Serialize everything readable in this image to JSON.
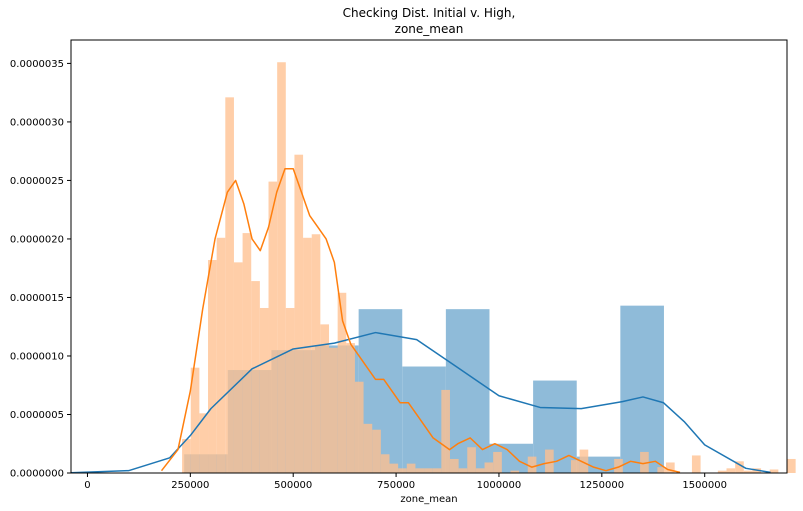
{
  "chart_data": {
    "type": "bar",
    "title_line1": "Checking Dist. Initial v. High,",
    "title_line2": "zone_mean",
    "xlabel": "zone_mean",
    "ylabel": "",
    "xlim": [
      -40000,
      1700000
    ],
    "ylim": [
      0,
      3.7e-06
    ],
    "xticks": [
      {
        "value": 0,
        "label": "0"
      },
      {
        "value": 250000,
        "label": "250000"
      },
      {
        "value": 500000,
        "label": "500000"
      },
      {
        "value": 750000,
        "label": "750000"
      },
      {
        "value": 1000000,
        "label": "1000000"
      },
      {
        "value": 1250000,
        "label": "1250000"
      },
      {
        "value": 1500000,
        "label": "1500000"
      }
    ],
    "yticks": [
      {
        "value": 0,
        "label": "0.0000000"
      },
      {
        "value": 5e-07,
        "label": "0.0000005"
      },
      {
        "value": 1e-06,
        "label": "0.0000010"
      },
      {
        "value": 1.5e-06,
        "label": "0.0000015"
      },
      {
        "value": 2e-06,
        "label": "0.0000020"
      },
      {
        "value": 2.5e-06,
        "label": "0.0000025"
      },
      {
        "value": 3e-06,
        "label": "0.0000030"
      },
      {
        "value": 3.5e-06,
        "label": "0.0000035"
      }
    ],
    "grid": false,
    "series": [
      {
        "color": "#1f77b4",
        "hist_color": "#8fbbd9",
        "bin_start": 235000,
        "bin_width": 106000,
        "hist_values": [
          1.6e-07,
          8.8e-07,
          1.05e-06,
          1.09e-06,
          1.4e-06,
          9.1e-07,
          1.4e-06,
          2.5e-07,
          7.9e-07,
          1.4e-07,
          1.43e-06
        ],
        "kde": {
          "x": [
            -40000,
            100000,
            200000,
            250000,
            300000,
            400000,
            500000,
            600000,
            700000,
            800000,
            900000,
            1000000,
            1100000,
            1200000,
            1300000,
            1350000,
            1400000,
            1450000,
            1500000,
            1600000,
            1660000
          ],
          "y": [
            2e-09,
            2e-08,
            1.3e-07,
            3.2e-07,
            5.5e-07,
            8.9e-07,
            1.06e-06,
            1.11e-06,
            1.2e-06,
            1.14e-06,
            9e-07,
            6.6e-07,
            5.6e-07,
            5.5e-07,
            6.1e-07,
            6.5e-07,
            6e-07,
            4.4e-07,
            2.4e-07,
            4e-08,
            5e-09
          ]
        }
      },
      {
        "color": "#ff7f0e",
        "hist_color": "#ffc08f",
        "bin_start": 230000,
        "bin_width": 21000,
        "hist_values": [
          2.9e-07,
          9e-07,
          5.1e-07,
          1.82e-06,
          2.01e-06,
          3.21e-06,
          1.8e-06,
          2.05e-06,
          1.64e-06,
          1.41e-06,
          2.49e-06,
          3.51e-06,
          1.41e-06,
          2.72e-06,
          2.01e-06,
          2.04e-06,
          1.27e-06,
          1.07e-06,
          1.54e-06,
          1.11e-06,
          7.8e-07,
          4.2e-07,
          3.7e-07,
          1.6e-07,
          8e-08,
          4e-08,
          8e-08,
          4e-08,
          4e-08,
          4e-08,
          7.1e-07,
          1.2e-07,
          4e-08,
          2.2e-07,
          4e-08,
          9e-08,
          1.8e-07,
          0,
          2e-08,
          0,
          1.4e-07,
          0,
          2e-07,
          0,
          0,
          1.1e-07,
          2e-07,
          0,
          0,
          0,
          1.2e-07,
          0,
          0,
          1.8e-07,
          0,
          5e-08,
          9e-08,
          0,
          0,
          1.5e-07,
          0,
          0,
          2e-08,
          4e-08,
          1e-07,
          2e-08,
          4e-08,
          0,
          3e-08,
          0,
          1.2e-07,
          0,
          5e-08,
          0,
          1.4e-07,
          0,
          6e-08
        ],
        "kde": {
          "x": [
            180000,
            220000,
            250000,
            280000,
            310000,
            340000,
            360000,
            380000,
            400000,
            420000,
            440000,
            460000,
            480000,
            500000,
            520000,
            540000,
            560000,
            580000,
            600000,
            620000,
            640000,
            660000,
            680000,
            700000,
            720000,
            740000,
            760000,
            780000,
            800000,
            820000,
            840000,
            860000,
            880000,
            900000,
            930000,
            960000,
            990000,
            1020000,
            1050000,
            1080000,
            1110000,
            1140000,
            1170000,
            1200000,
            1230000,
            1260000,
            1290000,
            1320000,
            1350000,
            1380000,
            1410000,
            1440000
          ],
          "y": [
            2e-08,
            2e-07,
            7e-07,
            1.4e-06,
            2e-06,
            2.4e-06,
            2.5e-06,
            2.3e-06,
            2e-06,
            1.9e-06,
            2.1e-06,
            2.4e-06,
            2.6e-06,
            2.6e-06,
            2.4e-06,
            2.2e-06,
            2.1e-06,
            2e-06,
            1.8e-06,
            1.3e-06,
            1.1e-06,
            1e-06,
            9e-07,
            8e-07,
            8e-07,
            7e-07,
            6e-07,
            6e-07,
            5e-07,
            4e-07,
            3e-07,
            2.5e-07,
            2e-07,
            2.5e-07,
            3e-07,
            2e-07,
            2.5e-07,
            2e-07,
            1e-07,
            5e-08,
            8e-08,
            1e-07,
            1.5e-07,
            1e-07,
            5e-08,
            2e-08,
            5e-08,
            1e-07,
            8e-08,
            1e-07,
            3e-08,
            5e-09
          ]
        }
      }
    ]
  }
}
